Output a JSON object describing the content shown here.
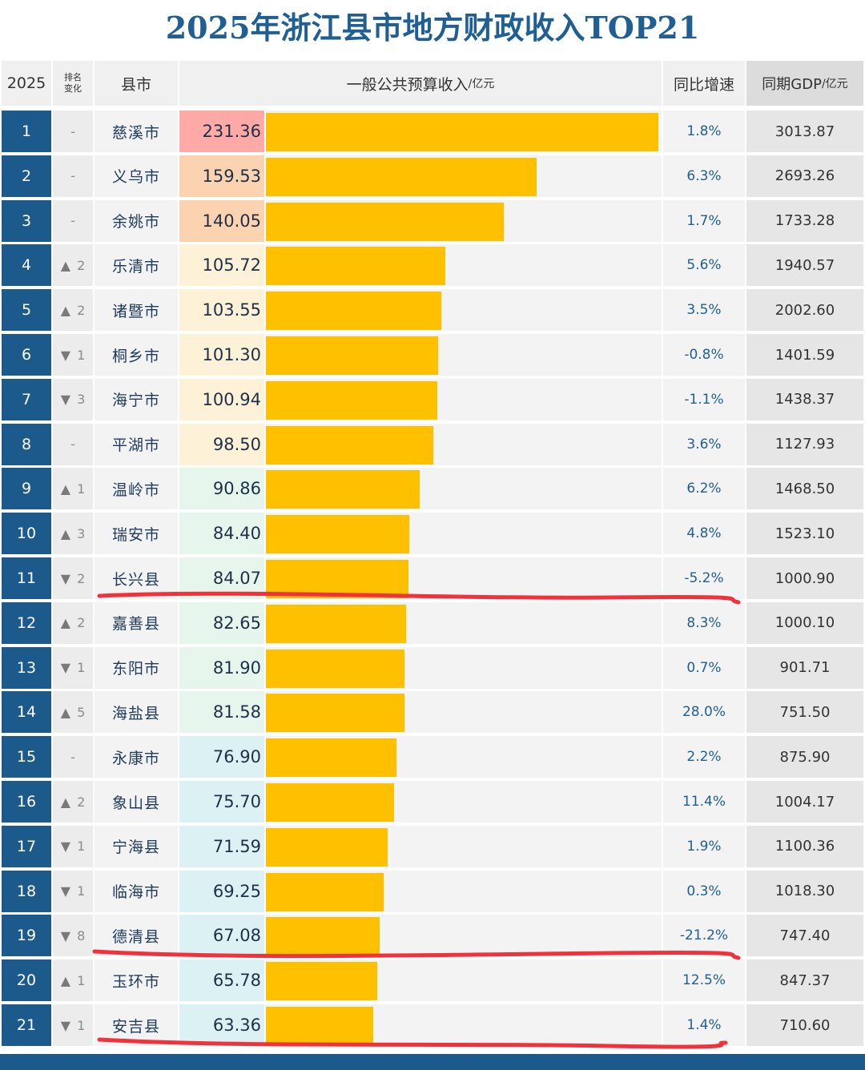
{
  "title": "2025年浙江县市地方财政收入TOP21",
  "header": {
    "year": "2025",
    "change_line1": "排名",
    "change_line2": "变化",
    "city": "县市",
    "revenue": "一般公共预算收入",
    "revenue_unit": "/亿元",
    "yoy": "同比增速",
    "gdp": "同期GDP",
    "gdp_unit": "/亿元"
  },
  "colors": {
    "title": "#1f5f93",
    "rank_bg": "#1d5a8c",
    "bar": "#ffc000",
    "rev_tier1": "#ffaaa6",
    "rev_tier2": "#fcd3b0",
    "rev_tier3": "#fdf1d8",
    "rev_tier4": "#e6f6ec",
    "rev_tier5": "#dcf1f3",
    "underline": "#f0323c"
  },
  "chart_data": {
    "type": "bar",
    "orientation": "horizontal",
    "title": "2025年浙江县市地方财政收入TOP21",
    "xlabel": "一般公共预算收入/亿元",
    "xlim": [
      0,
      231.36
    ],
    "categories": [
      "慈溪市",
      "义乌市",
      "余姚市",
      "乐清市",
      "诸暨市",
      "桐乡市",
      "海宁市",
      "平湖市",
      "温岭市",
      "瑞安市",
      "长兴县",
      "嘉善县",
      "东阳市",
      "海盐县",
      "永康市",
      "象山县",
      "宁海县",
      "临海市",
      "德清县",
      "玉环市",
      "安吉县"
    ],
    "rows": [
      {
        "rank": "1",
        "change_dir": "",
        "change": "-",
        "city": "慈溪市",
        "revenue": 231.36,
        "revenue_text": "231.36",
        "tier": 1,
        "yoy": "1.8%",
        "gdp": "3013.87"
      },
      {
        "rank": "2",
        "change_dir": "",
        "change": "-",
        "city": "义乌市",
        "revenue": 159.53,
        "revenue_text": "159.53",
        "tier": 2,
        "yoy": "6.3%",
        "gdp": "2693.26"
      },
      {
        "rank": "3",
        "change_dir": "",
        "change": "-",
        "city": "余姚市",
        "revenue": 140.05,
        "revenue_text": "140.05",
        "tier": 2,
        "yoy": "1.7%",
        "gdp": "1733.28"
      },
      {
        "rank": "4",
        "change_dir": "▲",
        "change": "2",
        "city": "乐清市",
        "revenue": 105.72,
        "revenue_text": "105.72",
        "tier": 3,
        "yoy": "5.6%",
        "gdp": "1940.57"
      },
      {
        "rank": "5",
        "change_dir": "▲",
        "change": "2",
        "city": "诸暨市",
        "revenue": 103.55,
        "revenue_text": "103.55",
        "tier": 3,
        "yoy": "3.5%",
        "gdp": "2002.60"
      },
      {
        "rank": "6",
        "change_dir": "▼",
        "change": "1",
        "city": "桐乡市",
        "revenue": 101.3,
        "revenue_text": "101.30",
        "tier": 3,
        "yoy": "-0.8%",
        "gdp": "1401.59"
      },
      {
        "rank": "7",
        "change_dir": "▼",
        "change": "3",
        "city": "海宁市",
        "revenue": 100.94,
        "revenue_text": "100.94",
        "tier": 3,
        "yoy": "-1.1%",
        "gdp": "1438.37"
      },
      {
        "rank": "8",
        "change_dir": "",
        "change": "-",
        "city": "平湖市",
        "revenue": 98.5,
        "revenue_text": "98.50",
        "tier": 3,
        "yoy": "3.6%",
        "gdp": "1127.93"
      },
      {
        "rank": "9",
        "change_dir": "▲",
        "change": "1",
        "city": "温岭市",
        "revenue": 90.86,
        "revenue_text": "90.86",
        "tier": 4,
        "yoy": "6.2%",
        "gdp": "1468.50"
      },
      {
        "rank": "10",
        "change_dir": "▲",
        "change": "3",
        "city": "瑞安市",
        "revenue": 84.4,
        "revenue_text": "84.40",
        "tier": 4,
        "yoy": "4.8%",
        "gdp": "1523.10"
      },
      {
        "rank": "11",
        "change_dir": "▼",
        "change": "2",
        "city": "长兴县",
        "revenue": 84.07,
        "revenue_text": "84.07",
        "tier": 4,
        "yoy": "-5.2%",
        "gdp": "1000.90"
      },
      {
        "rank": "12",
        "change_dir": "▲",
        "change": "2",
        "city": "嘉善县",
        "revenue": 82.65,
        "revenue_text": "82.65",
        "tier": 4,
        "yoy": "8.3%",
        "gdp": "1000.10"
      },
      {
        "rank": "13",
        "change_dir": "▼",
        "change": "1",
        "city": "东阳市",
        "revenue": 81.9,
        "revenue_text": "81.90",
        "tier": 4,
        "yoy": "0.7%",
        "gdp": "901.71"
      },
      {
        "rank": "14",
        "change_dir": "▲",
        "change": "5",
        "city": "海盐县",
        "revenue": 81.58,
        "revenue_text": "81.58",
        "tier": 4,
        "yoy": "28.0%",
        "gdp": "751.50"
      },
      {
        "rank": "15",
        "change_dir": "",
        "change": "-",
        "city": "永康市",
        "revenue": 76.9,
        "revenue_text": "76.90",
        "tier": 5,
        "yoy": "2.2%",
        "gdp": "875.90"
      },
      {
        "rank": "16",
        "change_dir": "▲",
        "change": "2",
        "city": "象山县",
        "revenue": 75.7,
        "revenue_text": "75.70",
        "tier": 5,
        "yoy": "11.4%",
        "gdp": "1004.17"
      },
      {
        "rank": "17",
        "change_dir": "▼",
        "change": "1",
        "city": "宁海县",
        "revenue": 71.59,
        "revenue_text": "71.59",
        "tier": 5,
        "yoy": "1.9%",
        "gdp": "1100.36"
      },
      {
        "rank": "18",
        "change_dir": "▼",
        "change": "1",
        "city": "临海市",
        "revenue": 69.25,
        "revenue_text": "69.25",
        "tier": 5,
        "yoy": "0.3%",
        "gdp": "1018.30"
      },
      {
        "rank": "19",
        "change_dir": "▼",
        "change": "8",
        "city": "德清县",
        "revenue": 67.08,
        "revenue_text": "67.08",
        "tier": 5,
        "yoy": "-21.2%",
        "gdp": "747.40"
      },
      {
        "rank": "20",
        "change_dir": "▲",
        "change": "1",
        "city": "玉环市",
        "revenue": 65.78,
        "revenue_text": "65.78",
        "tier": 5,
        "yoy": "12.5%",
        "gdp": "847.37"
      },
      {
        "rank": "21",
        "change_dir": "▼",
        "change": "1",
        "city": "安吉县",
        "revenue": 63.36,
        "revenue_text": "63.36",
        "tier": 5,
        "yoy": "1.4%",
        "gdp": "710.60"
      }
    ]
  },
  "annotations": {
    "underlined_ranks": [
      11,
      19,
      21
    ]
  }
}
